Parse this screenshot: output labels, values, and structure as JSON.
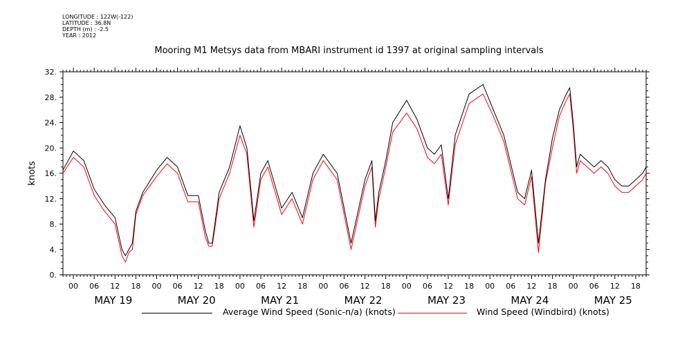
{
  "header": {
    "longitude": "LONGITUDE : 122W(-122)",
    "latitude": "LATITUDE : 36.8N",
    "depth": "DEPTH (m) : -2.5",
    "year": "YEAR : 2012",
    "title": "Mooring M1 Metsys data from MBARI instrument id 1397 at original sampling intervals"
  },
  "legend": {
    "series1_label": "Average Wind Speed (Sonic-n/a) (knots)",
    "series2_label": "Wind Speed (Windbird) (knots)"
  },
  "colors": {
    "series1": "#000000",
    "series2": "#ff0000",
    "axis": "#000000"
  },
  "chart_data": {
    "type": "line",
    "title": "Mooring M1 Metsys data from MBARI instrument id 1397 at original sampling intervals",
    "ylabel": "knots",
    "xlabel": "",
    "ylim": [
      0,
      32
    ],
    "yticks": [
      0,
      4,
      8,
      12,
      16,
      20,
      24,
      28,
      32
    ],
    "ytick_labels": [
      "0.",
      "4.",
      "8.",
      "12.",
      "16.",
      "20.",
      "24.",
      "28.",
      "32."
    ],
    "xlim_hours": [
      -3,
      165
    ],
    "x_hour_ticks": [
      "00",
      "06",
      "12",
      "18",
      "00",
      "06",
      "12",
      "18",
      "00",
      "06",
      "12",
      "18",
      "00",
      "06",
      "12",
      "18",
      "00",
      "06",
      "12",
      "18",
      "00",
      "06",
      "12",
      "18",
      "00",
      "06",
      "12",
      "18"
    ],
    "date_labels": [
      "MAY 19",
      "MAY 20",
      "MAY 21",
      "MAY 22",
      "MAY 23",
      "MAY 24",
      "MAY 25"
    ],
    "grid": false,
    "legend_position": "bottom",
    "series": [
      {
        "name": "Average Wind Speed (Sonic-n/a) (knots)",
        "x_hours": [
          -3,
          0,
          3,
          6,
          9,
          12,
          14,
          15,
          16,
          17,
          18,
          20,
          24,
          27,
          30,
          33,
          36,
          38,
          39,
          40,
          42,
          45,
          48,
          50,
          52,
          54,
          56,
          60,
          63,
          66,
          69,
          72,
          76,
          80,
          84,
          86,
          87,
          88,
          90,
          92,
          96,
          99,
          102,
          104,
          106,
          108,
          110,
          114,
          118,
          121,
          124,
          126,
          128,
          130,
          132,
          134,
          136,
          138,
          140,
          142,
          143,
          144,
          145,
          146,
          148,
          150,
          152,
          154,
          156,
          158,
          160,
          162,
          164,
          165
        ],
        "values": [
          16.5,
          19.5,
          18,
          13.5,
          11,
          9,
          4,
          3,
          4,
          5,
          10,
          13,
          16.5,
          18.5,
          17,
          12.5,
          12.5,
          7,
          5,
          5,
          13,
          17,
          23.5,
          20,
          8.5,
          16,
          18,
          10.5,
          13,
          9,
          16,
          19,
          16,
          5,
          15,
          18,
          8.5,
          13,
          18,
          24,
          27.5,
          24.5,
          20,
          19,
          20.5,
          12,
          22,
          28.5,
          30,
          26,
          22,
          17.5,
          13,
          12,
          16.5,
          5,
          15,
          21.5,
          26,
          28.5,
          29.5,
          24,
          17,
          19,
          18,
          17,
          18,
          17,
          15,
          14,
          14,
          15,
          16,
          17
        ]
      },
      {
        "name": "Wind Speed (Windbird) (knots)",
        "x_hours": [
          -3,
          0,
          3,
          6,
          9,
          12,
          14,
          15,
          16,
          17,
          18,
          20,
          24,
          27,
          30,
          33,
          36,
          38,
          39,
          40,
          42,
          45,
          48,
          50,
          52,
          54,
          56,
          60,
          63,
          66,
          69,
          72,
          76,
          80,
          84,
          86,
          87,
          88,
          90,
          92,
          96,
          99,
          102,
          104,
          106,
          108,
          110,
          114,
          118,
          121,
          124,
          126,
          128,
          130,
          132,
          134,
          136,
          138,
          140,
          142,
          143,
          144,
          145,
          146,
          148,
          150,
          152,
          154,
          156,
          158,
          160,
          162,
          164,
          165
        ],
        "values": [
          16,
          18.5,
          17,
          12.5,
          10,
          8,
          3,
          2,
          3.5,
          4,
          9.5,
          12.5,
          15.5,
          17.5,
          16,
          11.5,
          11.5,
          6,
          4.5,
          4.5,
          12,
          16,
          22,
          19,
          7.5,
          15,
          17,
          9.5,
          12,
          8,
          15,
          18,
          15,
          4,
          14,
          17,
          7.5,
          12,
          17,
          22.5,
          25.5,
          23,
          18.5,
          17.5,
          19,
          11,
          20.5,
          27,
          28.5,
          25,
          21,
          16.5,
          12,
          11,
          15.5,
          3.5,
          14.5,
          20,
          25,
          27.5,
          28.5,
          23,
          16,
          18,
          17,
          16,
          17,
          16,
          14,
          13,
          13,
          14,
          15,
          16
        ]
      }
    ]
  }
}
